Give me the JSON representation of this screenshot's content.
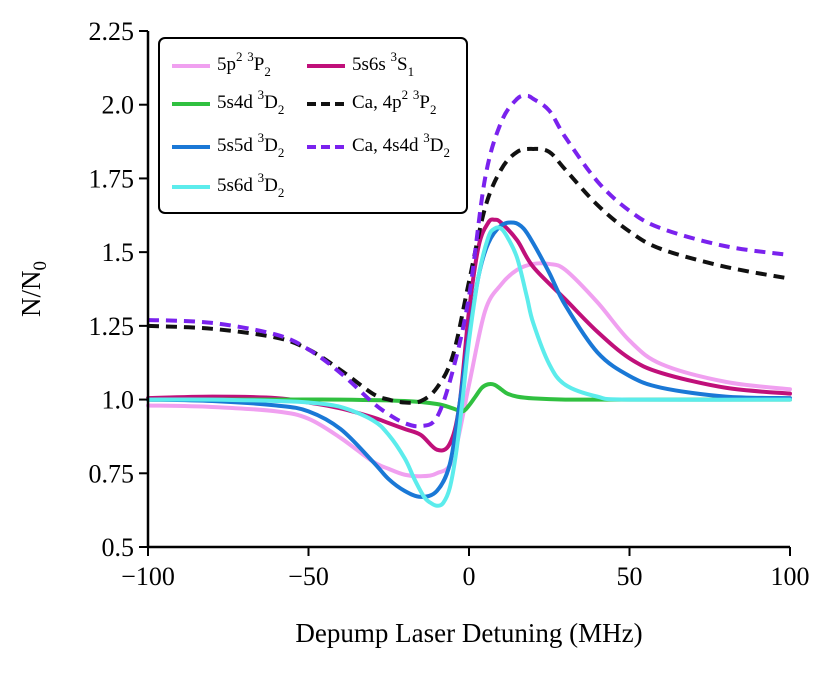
{
  "chart_data": {
    "type": "line",
    "xlabel": "Depump Laser Detuning (MHz)",
    "ylabel_main": "N/N",
    "ylabel_sub": "0",
    "xlim": [
      -100,
      100
    ],
    "ylim": [
      0.5,
      2.25
    ],
    "x_ticks": [
      -100,
      -50,
      0,
      50,
      100
    ],
    "x_tick_labels": [
      "−100",
      "−50",
      "0",
      "50",
      "100"
    ],
    "y_ticks": [
      0.5,
      0.75,
      1.0,
      1.25,
      1.5,
      1.75,
      2.0,
      2.25
    ],
    "y_tick_labels": [
      "0.5",
      "0.75",
      "1.0",
      "1.25",
      "1.5",
      "1.75",
      "2.0",
      "2.25"
    ],
    "grid": false,
    "legend_position": "top-left",
    "series": [
      {
        "name": "5p2 3P2",
        "label_parts": [
          [
            "5p",
            ""
          ],
          [
            "2",
            "sup"
          ],
          [
            " ",
            ""
          ],
          [
            "3",
            "sup"
          ],
          [
            "P",
            ""
          ],
          [
            "2",
            "sub"
          ]
        ],
        "color": "#f0a0f0",
        "dash": "solid",
        "x": [
          -100,
          -80,
          -60,
          -50,
          -40,
          -30,
          -25,
          -20,
          -15,
          -10,
          -5,
          0,
          5,
          10,
          15,
          20,
          25,
          30,
          40,
          50,
          60,
          80,
          100
        ],
        "y": [
          0.98,
          0.975,
          0.96,
          0.935,
          0.87,
          0.79,
          0.765,
          0.745,
          0.74,
          0.75,
          0.8,
          1.05,
          1.3,
          1.39,
          1.44,
          1.46,
          1.46,
          1.44,
          1.33,
          1.2,
          1.12,
          1.06,
          1.035
        ]
      },
      {
        "name": "5s6s 3S1",
        "label_parts": [
          [
            "5s6s",
            ""
          ],
          [
            " ",
            ""
          ],
          [
            "3",
            "sup"
          ],
          [
            "S",
            ""
          ],
          [
            "1",
            "sub"
          ]
        ],
        "color": "#c0107a",
        "dash": "solid",
        "x": [
          -100,
          -80,
          -60,
          -50,
          -40,
          -30,
          -25,
          -20,
          -15,
          -10,
          -6,
          -3,
          0,
          3,
          6,
          8,
          10,
          15,
          20,
          30,
          40,
          50,
          60,
          80,
          100
        ],
        "y": [
          1.005,
          1.01,
          1.005,
          0.99,
          0.97,
          0.94,
          0.92,
          0.9,
          0.88,
          0.83,
          0.85,
          0.98,
          1.3,
          1.52,
          1.6,
          1.61,
          1.6,
          1.54,
          1.45,
          1.34,
          1.23,
          1.14,
          1.09,
          1.04,
          1.02
        ]
      },
      {
        "name": "5s4d 3D2",
        "label_parts": [
          [
            "5s4d",
            ""
          ],
          [
            " ",
            ""
          ],
          [
            "3",
            "sup"
          ],
          [
            "D",
            ""
          ],
          [
            "2",
            "sub"
          ]
        ],
        "color": "#30c040",
        "dash": "solid",
        "x": [
          -100,
          -60,
          -40,
          -20,
          -10,
          -5,
          -2,
          0,
          2,
          4,
          6,
          8,
          10,
          12,
          15,
          20,
          30,
          50,
          100
        ],
        "y": [
          1.0,
          1.0,
          1.0,
          0.995,
          0.985,
          0.97,
          0.96,
          0.98,
          1.01,
          1.04,
          1.052,
          1.05,
          1.035,
          1.02,
          1.01,
          1.004,
          1.0,
          1.0,
          1.0
        ]
      },
      {
        "name": "Ca, 4p2 3P2",
        "label_parts": [
          [
            "Ca, 4p",
            ""
          ],
          [
            "2",
            "sup"
          ],
          [
            " ",
            ""
          ],
          [
            "3",
            "sup"
          ],
          [
            "P",
            ""
          ],
          [
            "2",
            "sub"
          ]
        ],
        "color": "#111111",
        "dash": "dashed",
        "x": [
          -100,
          -80,
          -60,
          -50,
          -40,
          -30,
          -25,
          -20,
          -15,
          -10,
          -5,
          0,
          5,
          10,
          15,
          20,
          25,
          30,
          40,
          50,
          60,
          80,
          100
        ],
        "y": [
          1.25,
          1.24,
          1.21,
          1.17,
          1.1,
          1.02,
          1.0,
          0.99,
          0.995,
          1.04,
          1.15,
          1.4,
          1.65,
          1.78,
          1.84,
          1.85,
          1.84,
          1.78,
          1.66,
          1.57,
          1.51,
          1.45,
          1.41
        ]
      },
      {
        "name": "5s5d 3D2",
        "label_parts": [
          [
            "5s5d",
            ""
          ],
          [
            " ",
            ""
          ],
          [
            "3",
            "sup"
          ],
          [
            "D",
            ""
          ],
          [
            "2",
            "sub"
          ]
        ],
        "color": "#1a78d6",
        "dash": "solid",
        "x": [
          -100,
          -80,
          -60,
          -50,
          -40,
          -30,
          -25,
          -20,
          -15,
          -10,
          -6,
          -3,
          0,
          3,
          6,
          10,
          14,
          17,
          20,
          25,
          30,
          40,
          50,
          60,
          80,
          100
        ],
        "y": [
          1.0,
          0.995,
          0.98,
          0.96,
          0.9,
          0.79,
          0.73,
          0.69,
          0.67,
          0.69,
          0.78,
          0.98,
          1.22,
          1.42,
          1.53,
          1.59,
          1.6,
          1.58,
          1.53,
          1.43,
          1.32,
          1.16,
          1.08,
          1.04,
          1.01,
          1.005
        ]
      },
      {
        "name": "Ca, 4s4d 3D2",
        "label_parts": [
          [
            "Ca, 4s4d",
            ""
          ],
          [
            " ",
            ""
          ],
          [
            "3",
            "sup"
          ],
          [
            "D",
            ""
          ],
          [
            "2",
            "sub"
          ]
        ],
        "color": "#7a22ee",
        "dash": "dashed",
        "x": [
          -100,
          -80,
          -60,
          -50,
          -40,
          -30,
          -25,
          -20,
          -15,
          -10,
          -5,
          0,
          5,
          10,
          15,
          18,
          20,
          25,
          30,
          40,
          50,
          60,
          80,
          100
        ],
        "y": [
          1.27,
          1.26,
          1.22,
          1.17,
          1.09,
          0.99,
          0.95,
          0.92,
          0.91,
          0.94,
          1.1,
          1.35,
          1.75,
          1.94,
          2.02,
          2.03,
          2.02,
          1.98,
          1.89,
          1.74,
          1.64,
          1.58,
          1.52,
          1.49
        ]
      },
      {
        "name": "5s6d 3D2",
        "label_parts": [
          [
            "5s6d",
            ""
          ],
          [
            " ",
            ""
          ],
          [
            "3",
            "sup"
          ],
          [
            "D",
            ""
          ],
          [
            "2",
            "sub"
          ]
        ],
        "color": "#5cecec",
        "dash": "solid",
        "x": [
          -100,
          -80,
          -60,
          -50,
          -40,
          -30,
          -25,
          -20,
          -17,
          -14,
          -12,
          -10,
          -8,
          -6,
          -4,
          -2,
          0,
          3,
          6,
          8,
          10,
          12,
          15,
          18,
          20,
          25,
          30,
          40,
          50,
          100
        ],
        "y": [
          1.0,
          1.0,
          0.995,
          0.99,
          0.975,
          0.93,
          0.88,
          0.8,
          0.73,
          0.67,
          0.65,
          0.64,
          0.65,
          0.7,
          0.82,
          1.0,
          1.2,
          1.42,
          1.55,
          1.58,
          1.58,
          1.55,
          1.48,
          1.35,
          1.26,
          1.12,
          1.05,
          1.01,
          1.0,
          1.0
        ]
      }
    ]
  }
}
